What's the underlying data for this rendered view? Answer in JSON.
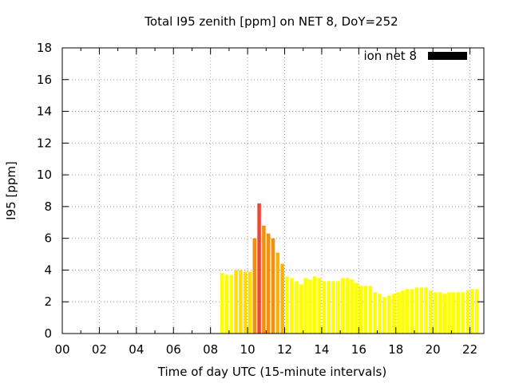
{
  "chart_data": {
    "type": "bar",
    "title": "Total I95 zenith [ppm] on NET 8, DoY=252",
    "xlabel": "Time of day UTC (15-minute intervals)",
    "ylabel": "I95 [ppm]",
    "xlim": [
      0,
      22.75
    ],
    "ylim": [
      0,
      18
    ],
    "grid": true,
    "legend_position": "top-right",
    "x_ticks": [
      "00",
      "02",
      "04",
      "06",
      "08",
      "10",
      "12",
      "14",
      "16",
      "18",
      "20",
      "22"
    ],
    "y_ticks": [
      "0",
      "2",
      "4",
      "6",
      "8",
      "10",
      "12",
      "14",
      "16",
      "18"
    ],
    "series": [
      {
        "name": "ion net 8",
        "legend_color": "#000000",
        "start_hour": 8.5,
        "interval_hours": 0.25,
        "values": [
          3.8,
          3.7,
          3.7,
          4.0,
          4.0,
          3.9,
          3.9,
          6.0,
          8.2,
          6.8,
          6.3,
          6.0,
          5.1,
          4.4,
          3.6,
          3.5,
          3.3,
          3.1,
          3.5,
          3.4,
          3.6,
          3.5,
          3.3,
          3.3,
          3.3,
          3.3,
          3.5,
          3.5,
          3.4,
          3.2,
          3.0,
          3.0,
          3.0,
          2.6,
          2.5,
          2.3,
          2.4,
          2.5,
          2.6,
          2.7,
          2.8,
          2.8,
          2.9,
          2.9,
          2.9,
          2.7,
          2.6,
          2.6,
          2.5,
          2.6,
          2.6,
          2.6,
          2.6,
          2.7,
          2.8,
          2.8
        ]
      }
    ],
    "bar_colors": {
      "low": "#ffff00",
      "mid": "#ffe000",
      "elevated": "#ffb000",
      "high": "#f09010",
      "peak": "#e84a3a"
    }
  }
}
